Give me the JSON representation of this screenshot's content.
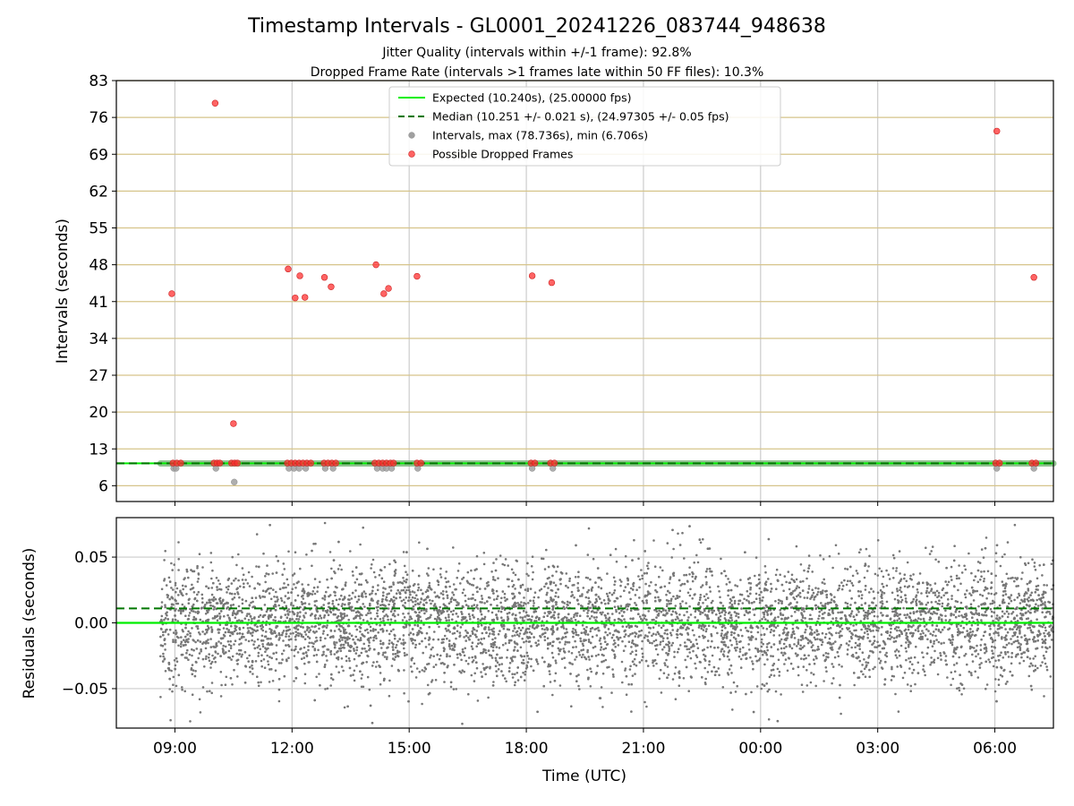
{
  "title": "Timestamp Intervals - GL0001_20241226_083744_948638",
  "subtitle_1": "Jitter Quality (intervals within +/-1 frame): 92.8%",
  "subtitle_2": "Dropped Frame Rate (intervals >1 frames late within 50 FF files): 10.3%",
  "colors": {
    "expected": "#00ee00",
    "median": "#007700",
    "intervals": "#a0a0a0",
    "dropped": "#ff3030",
    "hgrid": "#d6c48a",
    "vgrid": "#cccccc",
    "residual": "#777777"
  },
  "chart_data": [
    {
      "type": "scatter",
      "ylabel": "Intervals (seconds)",
      "ylim": [
        3,
        83
      ],
      "yticks": [
        6,
        13,
        20,
        27,
        34,
        41,
        48,
        55,
        62,
        69,
        76,
        83
      ],
      "xlim_hours": [
        7.5,
        31.5
      ],
      "grid": true,
      "legend_placement": "upper-center",
      "legend": [
        {
          "key": "expected",
          "label": "Expected (10.240s), (25.00000 fps)"
        },
        {
          "key": "median",
          "label": "Median (10.251 +/- 0.021 s), (24.97305 +/- 0.05 fps)"
        },
        {
          "key": "intervals",
          "label": "Intervals, max (78.736s), min (6.706s)"
        },
        {
          "key": "dropped",
          "label": "Possible Dropped Frames"
        }
      ],
      "expected_value": 10.24,
      "median_value": 10.251,
      "interval_x_range_hours": [
        8.63,
        31.5
      ],
      "gray_outliers": [
        {
          "x": 8.97,
          "y": 9.3
        },
        {
          "x": 9.03,
          "y": 9.3
        },
        {
          "x": 10.05,
          "y": 9.3
        },
        {
          "x": 10.52,
          "y": 6.7
        },
        {
          "x": 11.92,
          "y": 9.3
        },
        {
          "x": 12.05,
          "y": 9.3
        },
        {
          "x": 12.18,
          "y": 9.3
        },
        {
          "x": 12.35,
          "y": 9.3
        },
        {
          "x": 12.85,
          "y": 9.3
        },
        {
          "x": 13.05,
          "y": 9.3
        },
        {
          "x": 14.18,
          "y": 9.3
        },
        {
          "x": 14.32,
          "y": 9.3
        },
        {
          "x": 14.42,
          "y": 9.3
        },
        {
          "x": 14.55,
          "y": 9.3
        },
        {
          "x": 15.22,
          "y": 9.3
        },
        {
          "x": 18.15,
          "y": 9.3
        },
        {
          "x": 18.68,
          "y": 9.3
        },
        {
          "x": 30.05,
          "y": 9.3
        },
        {
          "x": 31.0,
          "y": 9.3
        }
      ],
      "dropped_frames": [
        {
          "x": 8.92,
          "y": 42.5
        },
        {
          "x": 10.03,
          "y": 78.7
        },
        {
          "x": 10.5,
          "y": 17.8
        },
        {
          "x": 11.9,
          "y": 47.2
        },
        {
          "x": 12.08,
          "y": 41.7
        },
        {
          "x": 12.2,
          "y": 45.9
        },
        {
          "x": 12.33,
          "y": 41.8
        },
        {
          "x": 12.83,
          "y": 45.6
        },
        {
          "x": 13.0,
          "y": 43.8
        },
        {
          "x": 14.15,
          "y": 48.0
        },
        {
          "x": 14.35,
          "y": 42.5
        },
        {
          "x": 14.47,
          "y": 43.5
        },
        {
          "x": 15.2,
          "y": 45.8
        },
        {
          "x": 18.15,
          "y": 45.9
        },
        {
          "x": 18.65,
          "y": 44.6
        },
        {
          "x": 30.05,
          "y": 73.4
        },
        {
          "x": 31.0,
          "y": 45.6
        },
        {
          "x": 8.95,
          "y": 10.3
        },
        {
          "x": 9.05,
          "y": 10.3
        },
        {
          "x": 9.15,
          "y": 10.3
        },
        {
          "x": 10.0,
          "y": 10.3
        },
        {
          "x": 10.08,
          "y": 10.3
        },
        {
          "x": 10.15,
          "y": 10.3
        },
        {
          "x": 10.45,
          "y": 10.3
        },
        {
          "x": 10.53,
          "y": 10.3
        },
        {
          "x": 10.6,
          "y": 10.3
        },
        {
          "x": 11.88,
          "y": 10.3
        },
        {
          "x": 11.98,
          "y": 10.3
        },
        {
          "x": 12.08,
          "y": 10.3
        },
        {
          "x": 12.18,
          "y": 10.3
        },
        {
          "x": 12.28,
          "y": 10.3
        },
        {
          "x": 12.38,
          "y": 10.3
        },
        {
          "x": 12.48,
          "y": 10.3
        },
        {
          "x": 12.82,
          "y": 10.3
        },
        {
          "x": 12.92,
          "y": 10.3
        },
        {
          "x": 13.02,
          "y": 10.3
        },
        {
          "x": 13.12,
          "y": 10.3
        },
        {
          "x": 14.12,
          "y": 10.3
        },
        {
          "x": 14.22,
          "y": 10.3
        },
        {
          "x": 14.32,
          "y": 10.3
        },
        {
          "x": 14.42,
          "y": 10.3
        },
        {
          "x": 14.52,
          "y": 10.3
        },
        {
          "x": 14.6,
          "y": 10.3
        },
        {
          "x": 15.2,
          "y": 10.3
        },
        {
          "x": 15.3,
          "y": 10.3
        },
        {
          "x": 18.12,
          "y": 10.3
        },
        {
          "x": 18.22,
          "y": 10.3
        },
        {
          "x": 18.62,
          "y": 10.3
        },
        {
          "x": 18.72,
          "y": 10.3
        },
        {
          "x": 30.02,
          "y": 10.3
        },
        {
          "x": 30.12,
          "y": 10.3
        },
        {
          "x": 30.95,
          "y": 10.3
        },
        {
          "x": 31.05,
          "y": 10.3
        }
      ]
    },
    {
      "type": "scatter",
      "xlabel": "Time (UTC)",
      "ylabel": "Residuals (seconds)",
      "ylim": [
        -0.08,
        0.08
      ],
      "yticks": [
        -0.05,
        0.0,
        0.05
      ],
      "ytick_labels": [
        "−0.05",
        "0.00",
        "0.05"
      ],
      "xlim_hours": [
        7.5,
        31.5
      ],
      "xticks_hours": [
        9,
        12,
        15,
        18,
        21,
        24,
        27,
        30
      ],
      "xtick_labels": [
        "09:00",
        "12:00",
        "15:00",
        "18:00",
        "21:00",
        "00:00",
        "03:00",
        "06:00"
      ],
      "grid": true,
      "expected_value": 0.0,
      "median_value": 0.011,
      "residual_x_range_hours": [
        8.63,
        31.5
      ],
      "residual_band": {
        "center": 0.0,
        "typical_spread": 0.03,
        "extreme_spread": 0.078
      },
      "residual_point_count": 6500
    }
  ]
}
